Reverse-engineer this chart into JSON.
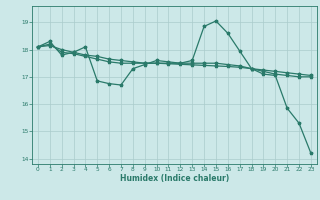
{
  "xlabel": "Humidex (Indice chaleur)",
  "ylabel": "",
  "bg_color": "#cce8e8",
  "grid_color": "#aacccc",
  "line_color": "#2a7a6a",
  "xlim": [
    -0.5,
    23.5
  ],
  "ylim": [
    13.8,
    19.6
  ],
  "yticks": [
    14,
    15,
    16,
    17,
    18,
    19
  ],
  "xticks": [
    0,
    1,
    2,
    3,
    4,
    5,
    6,
    7,
    8,
    9,
    10,
    11,
    12,
    13,
    14,
    15,
    16,
    17,
    18,
    19,
    20,
    21,
    22,
    23
  ],
  "series": [
    [
      18.1,
      18.3,
      17.8,
      17.9,
      18.1,
      16.85,
      16.75,
      16.7,
      17.3,
      17.45,
      17.6,
      17.55,
      17.5,
      17.6,
      18.85,
      19.05,
      18.6,
      17.95,
      17.3,
      17.1,
      17.05,
      15.85,
      15.3,
      14.2
    ],
    [
      18.1,
      18.2,
      17.9,
      17.85,
      17.75,
      17.65,
      17.55,
      17.5,
      17.5,
      17.5,
      17.5,
      17.5,
      17.5,
      17.5,
      17.5,
      17.5,
      17.45,
      17.4,
      17.3,
      17.2,
      17.1,
      17.05,
      17.0,
      17.0
    ],
    [
      18.1,
      18.15,
      18.0,
      17.9,
      17.8,
      17.75,
      17.65,
      17.6,
      17.55,
      17.5,
      17.5,
      17.48,
      17.46,
      17.44,
      17.42,
      17.4,
      17.38,
      17.35,
      17.3,
      17.25,
      17.2,
      17.15,
      17.1,
      17.05
    ]
  ]
}
